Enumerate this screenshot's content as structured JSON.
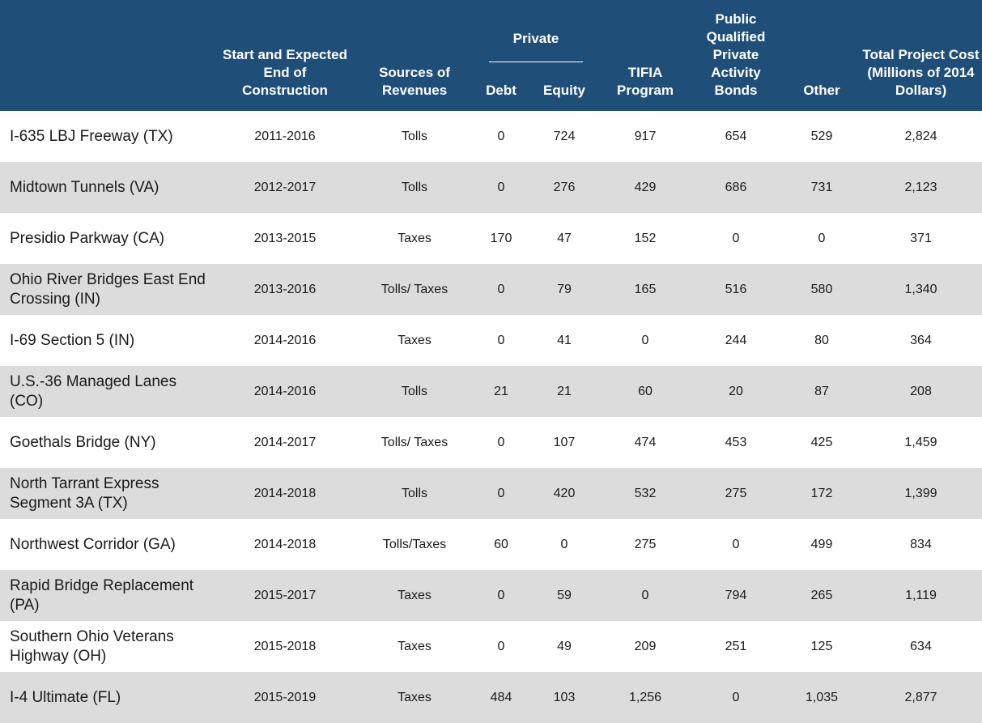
{
  "header": {
    "construction": "Start and Expected End of Construction",
    "revenues": "Sources of Revenues",
    "private": "Private",
    "debt": "Debt",
    "equity": "Equity",
    "tifia": "TIFIA Program",
    "bonds": "Public Qualified Private Activity Bonds",
    "other": "Other",
    "total": "Total Project Cost (Millions of 2014 Dollars)"
  },
  "rows": [
    {
      "name": "I-635 LBJ Freeway (TX)",
      "years": "2011-2016",
      "revenue": "Tolls",
      "debt": "0",
      "equity": "724",
      "tifia": "917",
      "bonds": "654",
      "other": "529",
      "total": "2,824"
    },
    {
      "name": "Midtown Tunnels (VA)",
      "years": "2012-2017",
      "revenue": "Tolls",
      "debt": "0",
      "equity": "276",
      "tifia": "429",
      "bonds": "686",
      "other": "731",
      "total": "2,123"
    },
    {
      "name": "Presidio Parkway (CA)",
      "years": "2013-2015",
      "revenue": "Taxes",
      "debt": "170",
      "equity": "47",
      "tifia": "152",
      "bonds": "0",
      "other": "0",
      "total": "371"
    },
    {
      "name": "Ohio River Bridges East End Crossing (IN)",
      "years": "2013-2016",
      "revenue": "Tolls/ Taxes",
      "debt": "0",
      "equity": "79",
      "tifia": "165",
      "bonds": "516",
      "other": "580",
      "total": "1,340"
    },
    {
      "name": "I-69 Section 5 (IN)",
      "years": "2014-2016",
      "revenue": "Taxes",
      "debt": "0",
      "equity": "41",
      "tifia": "0",
      "bonds": "244",
      "other": "80",
      "total": "364"
    },
    {
      "name": "U.S.-36 Managed Lanes (CO)",
      "years": "2014-2016",
      "revenue": "Tolls",
      "debt": "21",
      "equity": "21",
      "tifia": "60",
      "bonds": "20",
      "other": "87",
      "total": "208"
    },
    {
      "name": "Goethals Bridge (NY)",
      "years": "2014-2017",
      "revenue": "Tolls/ Taxes",
      "debt": "0",
      "equity": "107",
      "tifia": "474",
      "bonds": "453",
      "other": "425",
      "total": "1,459"
    },
    {
      "name": "North Tarrant Express Segment 3A (TX)",
      "years": "2014-2018",
      "revenue": "Tolls",
      "debt": "0",
      "equity": "420",
      "tifia": "532",
      "bonds": "275",
      "other": "172",
      "total": "1,399"
    },
    {
      "name": "Northwest Corridor (GA)",
      "years": "2014-2018",
      "revenue": "Tolls/Taxes",
      "debt": "60",
      "equity": "0",
      "tifia": "275",
      "bonds": "0",
      "other": "499",
      "total": "834"
    },
    {
      "name": "Rapid Bridge Replacement (PA)",
      "years": "2015-2017",
      "revenue": "Taxes",
      "debt": "0",
      "equity": "59",
      "tifia": "0",
      "bonds": "794",
      "other": "265",
      "total": "1,119"
    },
    {
      "name": "Southern Ohio Veterans Highway (OH)",
      "years": "2015-2018",
      "revenue": "Taxes",
      "debt": "0",
      "equity": "49",
      "tifia": "209",
      "bonds": "251",
      "other": "125",
      "total": "634"
    },
    {
      "name": "I-4 Ultimate (FL)",
      "years": "2015-2019",
      "revenue": "Taxes",
      "debt": "484",
      "equity": "103",
      "tifia": "1,256",
      "bonds": "0",
      "other": "1,035",
      "total": "2,877"
    }
  ],
  "colors": {
    "header_bg": "#1f4e79",
    "row_shade": "#dcdcdc"
  }
}
